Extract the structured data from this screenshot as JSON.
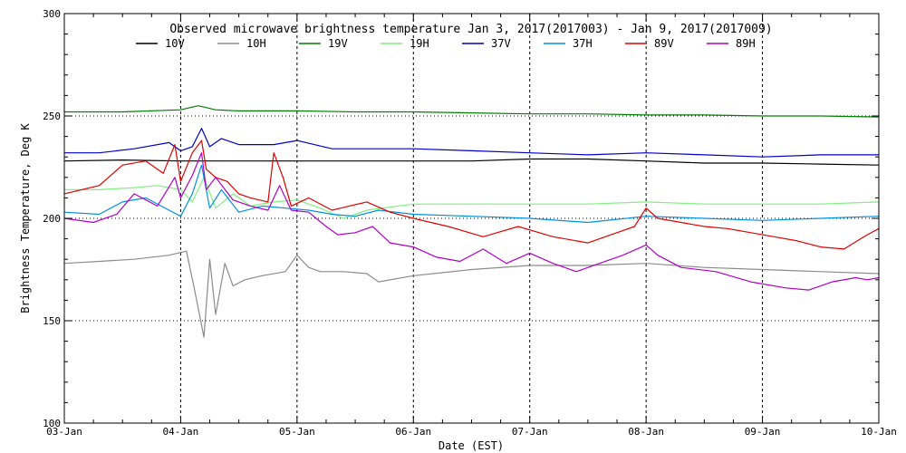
{
  "chart_data": {
    "type": "line",
    "title": "Observed microwave brightness temperature Jan  3, 2017(2017003) - Jan  9, 2017(2017009)",
    "xlabel": "Date (EST)",
    "ylabel": "Brightness Temperature, Deg K",
    "xlim": [
      0,
      7
    ],
    "ylim": [
      100,
      300
    ],
    "x_unit": "days since 03-Jan-2017 00:00",
    "x_tick_values": [
      0,
      1,
      2,
      3,
      4,
      5,
      6,
      7
    ],
    "x_tick_labels": [
      "03-Jan",
      "04-Jan",
      "05-Jan",
      "06-Jan",
      "07-Jan",
      "08-Jan",
      "09-Jan",
      "10-Jan"
    ],
    "y_ticks": [
      100,
      150,
      200,
      250,
      300
    ],
    "y_grid_values": [
      150,
      200,
      250
    ],
    "x_grid_values": [
      1,
      2,
      3,
      4,
      5,
      6
    ],
    "grid": true,
    "legend_position": "top",
    "series": [
      {
        "name": "10V",
        "color": "#000000",
        "x": [
          0,
          0.5,
          1,
          1.5,
          2,
          2.5,
          3,
          3.5,
          4,
          4.5,
          5,
          5.5,
          6,
          6.5,
          7
        ],
        "y": [
          228,
          228.5,
          228,
          228,
          228,
          228,
          228,
          228,
          229,
          229,
          228,
          227,
          227,
          226.5,
          226
        ]
      },
      {
        "name": "10H",
        "color": "#8c8c8c",
        "x": [
          0,
          0.3,
          0.6,
          0.9,
          1.05,
          1.12,
          1.2,
          1.25,
          1.3,
          1.38,
          1.45,
          1.55,
          1.7,
          1.9,
          2.0,
          2.1,
          2.2,
          2.4,
          2.6,
          2.7,
          3.0,
          3.5,
          4.0,
          4.5,
          5.0,
          5.5,
          6.0,
          6.5,
          7.0
        ],
        "y": [
          178,
          179,
          180,
          182,
          184,
          165,
          142,
          180,
          153,
          178,
          167,
          170,
          172,
          174,
          182,
          176,
          174,
          174,
          173,
          169,
          172,
          175,
          177,
          177,
          178,
          176,
          175,
          174,
          173
        ]
      },
      {
        "name": "19V",
        "color": "#008000",
        "x": [
          0,
          0.5,
          1,
          1.15,
          1.3,
          1.5,
          2,
          2.5,
          3,
          3.5,
          4,
          4.5,
          5,
          5.5,
          6,
          6.5,
          7
        ],
        "y": [
          252,
          252,
          253,
          255,
          253,
          252.5,
          252.5,
          252,
          252,
          251.5,
          251,
          251,
          250.5,
          250.5,
          250,
          250,
          249.5
        ]
      },
      {
        "name": "19H",
        "color": "#80f080",
        "x": [
          0,
          0.3,
          0.6,
          0.8,
          1.0,
          1.1,
          1.2,
          1.3,
          1.45,
          1.6,
          1.8,
          2.0,
          2.2,
          2.4,
          2.6,
          3.0,
          3.5,
          4.0,
          4.5,
          5.0,
          5.5,
          6.0,
          6.5,
          7.0
        ],
        "y": [
          214,
          214,
          215,
          216,
          214,
          208,
          220,
          205,
          212,
          206,
          208,
          209,
          205,
          200,
          204,
          207,
          207,
          207,
          207,
          208,
          207,
          207,
          207,
          208
        ]
      },
      {
        "name": "37V",
        "color": "#0000c8",
        "x": [
          0,
          0.3,
          0.6,
          0.9,
          1.0,
          1.1,
          1.18,
          1.25,
          1.35,
          1.5,
          1.8,
          2.0,
          2.3,
          2.6,
          3.0,
          3.5,
          4.0,
          4.5,
          5.0,
          5.5,
          6.0,
          6.5,
          7.0
        ],
        "y": [
          232,
          232,
          234,
          237,
          233,
          235,
          244,
          235,
          239,
          236,
          236,
          238,
          234,
          234,
          234,
          233,
          232,
          231,
          232,
          231,
          230,
          231,
          231
        ]
      },
      {
        "name": "37H",
        "color": "#0090e0",
        "x": [
          0,
          0.3,
          0.5,
          0.7,
          0.9,
          1.0,
          1.1,
          1.18,
          1.25,
          1.35,
          1.5,
          1.7,
          1.9,
          2.1,
          2.3,
          2.5,
          2.7,
          3.0,
          3.5,
          4.0,
          4.5,
          5.0,
          5.5,
          6.0,
          6.5,
          7.0
        ],
        "y": [
          203,
          202,
          208,
          210,
          204,
          201,
          212,
          226,
          205,
          214,
          203,
          206,
          205,
          204,
          202,
          201,
          204,
          202,
          201,
          200,
          198,
          201,
          200,
          199,
          200,
          201
        ]
      },
      {
        "name": "89V",
        "color": "#e00000",
        "x": [
          0,
          0.3,
          0.5,
          0.7,
          0.85,
          0.95,
          1.0,
          1.1,
          1.18,
          1.22,
          1.3,
          1.4,
          1.5,
          1.6,
          1.75,
          1.8,
          1.88,
          1.95,
          2.1,
          2.3,
          2.6,
          2.8,
          3.0,
          3.3,
          3.6,
          3.9,
          4.2,
          4.5,
          4.9,
          5.0,
          5.1,
          5.3,
          5.5,
          5.7,
          5.9,
          6.1,
          6.3,
          6.5,
          6.7,
          6.9,
          7.0
        ],
        "y": [
          212,
          216,
          226,
          228,
          222,
          236,
          218,
          232,
          238,
          224,
          220,
          218,
          212,
          210,
          208,
          232,
          220,
          206,
          210,
          204,
          208,
          203,
          200,
          196,
          191,
          196,
          191,
          188,
          196,
          205,
          200,
          198,
          196,
          195,
          193,
          191,
          189,
          186,
          185,
          192,
          195
        ]
      },
      {
        "name": "89H",
        "color": "#b000c8",
        "x": [
          0,
          0.25,
          0.45,
          0.6,
          0.8,
          0.95,
          1.0,
          1.1,
          1.18,
          1.22,
          1.3,
          1.45,
          1.6,
          1.75,
          1.85,
          1.95,
          2.1,
          2.25,
          2.35,
          2.5,
          2.65,
          2.8,
          3.0,
          3.2,
          3.4,
          3.6,
          3.8,
          4.0,
          4.2,
          4.4,
          4.6,
          4.8,
          5.0,
          5.1,
          5.3,
          5.6,
          5.9,
          6.2,
          6.4,
          6.6,
          6.8,
          6.9,
          7.0
        ],
        "y": [
          200,
          198,
          202,
          212,
          206,
          220,
          210,
          221,
          232,
          214,
          220,
          209,
          206,
          204,
          216,
          204,
          203,
          196,
          192,
          193,
          196,
          188,
          186,
          181,
          179,
          185,
          178,
          183,
          178,
          174,
          178,
          182,
          187,
          182,
          176,
          174,
          169,
          166,
          165,
          169,
          171,
          170,
          171
        ]
      }
    ]
  }
}
